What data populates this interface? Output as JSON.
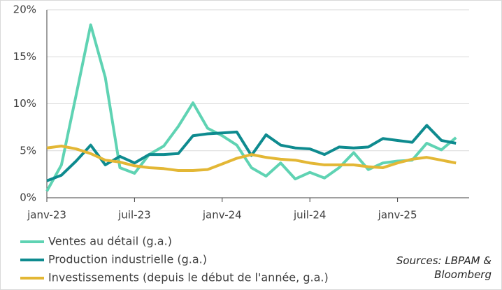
{
  "chart_data": {
    "type": "line",
    "categories": [
      "janv-23",
      null,
      null,
      null,
      null,
      null,
      "juil-23",
      null,
      null,
      null,
      null,
      null,
      "janv-24",
      null,
      null,
      null,
      null,
      null,
      "juil-24",
      null,
      null,
      null,
      null,
      null,
      "janv-25",
      null,
      null,
      null,
      null
    ],
    "series": [
      {
        "name": "Ventes au détail (g.a.)",
        "color": "#5fd3b3",
        "values": [
          0.7,
          3.5,
          10.9,
          18.4,
          12.8,
          3.2,
          2.6,
          4.6,
          5.5,
          7.6,
          10.1,
          7.4,
          6.6,
          5.6,
          3.2,
          2.3,
          3.7,
          2.0,
          2.7,
          2.1,
          3.2,
          4.8,
          3.0,
          3.7,
          3.9,
          4.0,
          5.8,
          5.1,
          6.4
        ]
      },
      {
        "name": "Production industrielle (g.a.)",
        "color": "#0e8b8f",
        "values": [
          1.8,
          2.4,
          3.9,
          5.6,
          3.5,
          4.4,
          3.7,
          4.6,
          4.6,
          4.7,
          6.6,
          6.8,
          6.9,
          7.0,
          4.5,
          6.7,
          5.6,
          5.3,
          5.2,
          4.6,
          5.4,
          5.3,
          5.4,
          6.3,
          6.1,
          5.9,
          7.7,
          6.1,
          5.8
        ]
      },
      {
        "name": "Investissements (depuis le début de l'année, g.a.)",
        "color": "#e3b735",
        "values": [
          5.3,
          5.5,
          5.2,
          4.7,
          4.0,
          3.8,
          3.4,
          3.2,
          3.1,
          2.9,
          2.9,
          3.0,
          3.6,
          4.2,
          4.6,
          4.3,
          4.1,
          4.0,
          3.7,
          3.5,
          3.5,
          3.5,
          3.3,
          3.2,
          3.7,
          4.1,
          4.3,
          4.0,
          3.7
        ]
      }
    ],
    "ylim": [
      0,
      20
    ],
    "yticks": [
      {
        "value": 0,
        "label": "0%"
      },
      {
        "value": 5,
        "label": "5%"
      },
      {
        "value": 10,
        "label": "10%"
      },
      {
        "value": 15,
        "label": "15%"
      },
      {
        "value": 20,
        "label": "20%"
      }
    ],
    "grid": true,
    "annotation": "Sources: LBPAM & Bloomberg"
  }
}
